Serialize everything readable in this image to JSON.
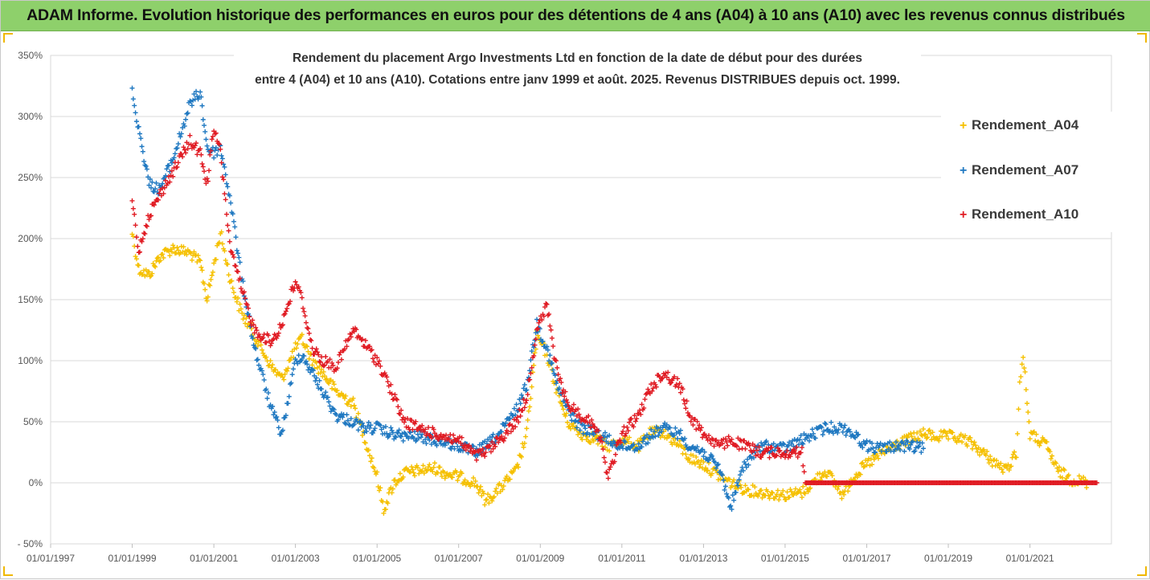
{
  "header": {
    "title": "ADAM Informe. Evolution historique des performances en euros pour des détentions de 4 ans (A04) à 10 ans (A10) avec les revenus connus distribués"
  },
  "chart_data": {
    "type": "scatter",
    "title_line1": "Rendement du placement Argo Investments Ltd en fonction de la date de début pour des durées",
    "title_line2": "entre 4 (A04) et 10 ans (A10). Cotations entre janv 1999 et août. 2025. Revenus DISTRIBUES depuis oct. 1999.",
    "x_ticks": [
      "01/01/1997",
      "01/01/1999",
      "01/01/2001",
      "01/01/2003",
      "01/01/2005",
      "01/01/2007",
      "01/01/2009",
      "01/01/2011",
      "01/01/2013",
      "01/01/2015",
      "01/01/2017",
      "01/01/2019",
      "01/01/2021"
    ],
    "y_ticks": [
      "- 50%",
      "0%",
      "50%",
      "100%",
      "150%",
      "200%",
      "250%",
      "300%",
      "350%"
    ],
    "xlim": [
      "1997-01-01",
      "2022-12-31"
    ],
    "ylim": [
      -50,
      350
    ],
    "grid": "horizontal",
    "legend_position": "right",
    "series": [
      {
        "name": "Rendement_A04",
        "color": "#f5c000",
        "points": [
          [
            "1999-01-01",
            205
          ],
          [
            "1999-03-01",
            175
          ],
          [
            "1999-06-01",
            170
          ],
          [
            "1999-09-01",
            185
          ],
          [
            "2000-01-01",
            192
          ],
          [
            "2000-06-01",
            188
          ],
          [
            "2000-09-01",
            180
          ],
          [
            "2000-11-01",
            150
          ],
          [
            "2001-01-01",
            178
          ],
          [
            "2001-03-01",
            205
          ],
          [
            "2001-06-01",
            165
          ],
          [
            "2001-09-01",
            140
          ],
          [
            "2002-01-01",
            120
          ],
          [
            "2002-06-01",
            95
          ],
          [
            "2002-09-01",
            85
          ],
          [
            "2003-01-01",
            110
          ],
          [
            "2003-03-01",
            118
          ],
          [
            "2003-06-01",
            100
          ],
          [
            "2003-09-01",
            90
          ],
          [
            "2004-01-01",
            75
          ],
          [
            "2004-06-01",
            65
          ],
          [
            "2004-09-01",
            40
          ],
          [
            "2005-01-01",
            5
          ],
          [
            "2005-03-01",
            -22
          ],
          [
            "2005-06-01",
            0
          ],
          [
            "2005-09-01",
            8
          ],
          [
            "2006-01-01",
            10
          ],
          [
            "2006-06-01",
            12
          ],
          [
            "2006-09-01",
            8
          ],
          [
            "2007-01-01",
            5
          ],
          [
            "2007-06-01",
            0
          ],
          [
            "2007-09-01",
            -15
          ],
          [
            "2008-01-01",
            -5
          ],
          [
            "2008-06-01",
            10
          ],
          [
            "2008-09-01",
            40
          ],
          [
            "2008-12-01",
            120
          ],
          [
            "2009-03-01",
            105
          ],
          [
            "2009-06-01",
            75
          ],
          [
            "2009-09-01",
            50
          ],
          [
            "2010-01-01",
            40
          ],
          [
            "2010-06-01",
            35
          ],
          [
            "2010-09-01",
            30
          ],
          [
            "2011-01-01",
            35
          ],
          [
            "2011-06-01",
            30
          ],
          [
            "2011-09-01",
            40
          ],
          [
            "2012-01-01",
            42
          ],
          [
            "2012-06-01",
            30
          ],
          [
            "2012-09-01",
            20
          ],
          [
            "2013-01-01",
            15
          ],
          [
            "2013-06-01",
            5
          ],
          [
            "2013-09-01",
            0
          ],
          [
            "2014-01-01",
            -5
          ],
          [
            "2014-06-01",
            -8
          ],
          [
            "2015-01-01",
            -10
          ],
          [
            "2015-06-01",
            -8
          ],
          [
            "2016-01-01",
            10
          ],
          [
            "2016-06-01",
            -10
          ],
          [
            "2016-09-01",
            5
          ],
          [
            "2017-01-01",
            15
          ],
          [
            "2017-06-01",
            25
          ],
          [
            "2017-09-01",
            30
          ],
          [
            "2018-01-01",
            35
          ],
          [
            "2018-06-01",
            40
          ],
          [
            "2018-09-01",
            38
          ],
          [
            "2019-01-01",
            38
          ],
          [
            "2019-06-01",
            35
          ],
          [
            "2019-09-01",
            30
          ],
          [
            "2020-01-01",
            20
          ],
          [
            "2020-06-01",
            10
          ],
          [
            "2020-09-01",
            25
          ],
          [
            "2020-10-01",
            80
          ],
          [
            "2020-11-01",
            105
          ],
          [
            "2021-01-01",
            40
          ],
          [
            "2021-06-01",
            30
          ],
          [
            "2021-09-01",
            10
          ],
          [
            "2022-01-01",
            3
          ],
          [
            "2022-06-01",
            0
          ]
        ]
      },
      {
        "name": "Rendement_A07",
        "color": "#1f78c1",
        "points": [
          [
            "1999-01-01",
            320
          ],
          [
            "1999-03-01",
            290
          ],
          [
            "1999-06-01",
            245
          ],
          [
            "1999-09-01",
            240
          ],
          [
            "2000-01-01",
            265
          ],
          [
            "2000-06-01",
            310
          ],
          [
            "2000-09-01",
            320
          ],
          [
            "2000-11-01",
            275
          ],
          [
            "2001-01-01",
            270
          ],
          [
            "2001-03-01",
            275
          ],
          [
            "2001-06-01",
            230
          ],
          [
            "2001-09-01",
            170
          ],
          [
            "2002-01-01",
            110
          ],
          [
            "2002-06-01",
            60
          ],
          [
            "2002-09-01",
            40
          ],
          [
            "2003-01-01",
            100
          ],
          [
            "2003-03-01",
            105
          ],
          [
            "2003-06-01",
            90
          ],
          [
            "2003-09-01",
            75
          ],
          [
            "2004-01-01",
            55
          ],
          [
            "2004-06-01",
            50
          ],
          [
            "2004-09-01",
            45
          ],
          [
            "2005-01-01",
            45
          ],
          [
            "2005-03-01",
            42
          ],
          [
            "2005-06-01",
            40
          ],
          [
            "2005-09-01",
            38
          ],
          [
            "2006-01-01",
            38
          ],
          [
            "2006-06-01",
            35
          ],
          [
            "2006-09-01",
            33
          ],
          [
            "2007-01-01",
            30
          ],
          [
            "2007-06-01",
            25
          ],
          [
            "2007-09-01",
            30
          ],
          [
            "2008-01-01",
            40
          ],
          [
            "2008-06-01",
            60
          ],
          [
            "2008-09-01",
            80
          ],
          [
            "2008-12-01",
            130
          ],
          [
            "2009-03-01",
            110
          ],
          [
            "2009-06-01",
            80
          ],
          [
            "2009-09-01",
            60
          ],
          [
            "2010-01-01",
            45
          ],
          [
            "2010-06-01",
            40
          ],
          [
            "2010-09-01",
            35
          ],
          [
            "2011-01-01",
            30
          ],
          [
            "2011-06-01",
            30
          ],
          [
            "2011-09-01",
            38
          ],
          [
            "2012-01-01",
            45
          ],
          [
            "2012-06-01",
            40
          ],
          [
            "2012-09-01",
            30
          ],
          [
            "2013-01-01",
            25
          ],
          [
            "2013-06-01",
            10
          ],
          [
            "2013-09-01",
            -20
          ],
          [
            "2014-01-01",
            15
          ],
          [
            "2014-06-01",
            30
          ],
          [
            "2015-01-01",
            28
          ],
          [
            "2015-06-01",
            35
          ],
          [
            "2016-01-01",
            45
          ],
          [
            "2016-06-01",
            45
          ],
          [
            "2016-09-01",
            40
          ],
          [
            "2017-01-01",
            30
          ],
          [
            "2017-06-01",
            28
          ],
          [
            "2017-09-01",
            30
          ],
          [
            "2018-01-01",
            30
          ],
          [
            "2018-06-01",
            28
          ]
        ]
      },
      {
        "name": "Rendement_A10",
        "color": "#e01b23",
        "points": [
          [
            "1999-01-01",
            230
          ],
          [
            "1999-03-01",
            190
          ],
          [
            "1999-06-01",
            220
          ],
          [
            "1999-09-01",
            235
          ],
          [
            "2000-01-01",
            255
          ],
          [
            "2000-06-01",
            280
          ],
          [
            "2000-09-01",
            270
          ],
          [
            "2000-11-01",
            245
          ],
          [
            "2001-01-01",
            290
          ],
          [
            "2001-03-01",
            270
          ],
          [
            "2001-06-01",
            190
          ],
          [
            "2001-09-01",
            160
          ],
          [
            "2002-01-01",
            125
          ],
          [
            "2002-06-01",
            115
          ],
          [
            "2002-09-01",
            130
          ],
          [
            "2003-01-01",
            165
          ],
          [
            "2003-03-01",
            150
          ],
          [
            "2003-06-01",
            110
          ],
          [
            "2003-09-01",
            100
          ],
          [
            "2004-01-01",
            95
          ],
          [
            "2004-06-01",
            125
          ],
          [
            "2004-09-01",
            115
          ],
          [
            "2005-01-01",
            100
          ],
          [
            "2005-03-01",
            90
          ],
          [
            "2005-06-01",
            70
          ],
          [
            "2005-09-01",
            50
          ],
          [
            "2006-01-01",
            45
          ],
          [
            "2006-06-01",
            40
          ],
          [
            "2006-09-01",
            38
          ],
          [
            "2007-01-01",
            35
          ],
          [
            "2007-06-01",
            22
          ],
          [
            "2007-09-01",
            25
          ],
          [
            "2008-01-01",
            35
          ],
          [
            "2008-06-01",
            50
          ],
          [
            "2008-09-01",
            70
          ],
          [
            "2008-12-01",
            125
          ],
          [
            "2009-03-01",
            145
          ],
          [
            "2009-06-01",
            90
          ],
          [
            "2009-09-01",
            65
          ],
          [
            "2010-01-01",
            55
          ],
          [
            "2010-06-01",
            45
          ],
          [
            "2010-09-01",
            5
          ],
          [
            "2011-01-01",
            40
          ],
          [
            "2011-06-01",
            55
          ],
          [
            "2011-09-01",
            75
          ],
          [
            "2012-01-01",
            90
          ],
          [
            "2012-06-01",
            80
          ],
          [
            "2012-09-01",
            55
          ],
          [
            "2013-01-01",
            40
          ],
          [
            "2013-06-01",
            30
          ],
          [
            "2013-09-01",
            35
          ],
          [
            "2014-01-01",
            30
          ],
          [
            "2014-06-01",
            25
          ],
          [
            "2015-01-01",
            25
          ],
          [
            "2015-06-01",
            25
          ],
          [
            "2015-07-01",
            0
          ],
          [
            "2016-01-01",
            0
          ],
          [
            "2017-01-01",
            0
          ],
          [
            "2018-01-01",
            0
          ],
          [
            "2019-01-01",
            0
          ],
          [
            "2020-01-01",
            0
          ],
          [
            "2021-01-01",
            0
          ],
          [
            "2022-01-01",
            0
          ],
          [
            "2022-09-01",
            0
          ]
        ]
      }
    ]
  }
}
